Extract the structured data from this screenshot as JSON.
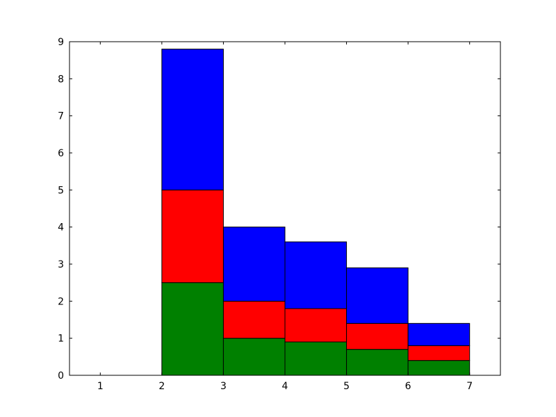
{
  "chart_data": {
    "type": "histogram",
    "bins": [
      2,
      3,
      4,
      5,
      6,
      7
    ],
    "series": [
      {
        "color": "#008000",
        "values": [
          2.5,
          1.0,
          0.9,
          0.7,
          0.4
        ]
      },
      {
        "color": "#ff0000",
        "values": [
          2.5,
          1.0,
          0.9,
          0.7,
          0.4
        ]
      },
      {
        "color": "#0000ff",
        "values": [
          3.8,
          2.0,
          1.8,
          1.5,
          0.6
        ]
      }
    ],
    "xlim": [
      0.5,
      7.5
    ],
    "xticks": [
      1,
      2,
      3,
      4,
      5,
      6,
      7
    ],
    "ylim": [
      0,
      9
    ],
    "yticks": [
      0,
      1,
      2,
      3,
      4,
      5,
      6,
      7,
      8,
      9
    ],
    "stacked": true,
    "grid": false
  }
}
